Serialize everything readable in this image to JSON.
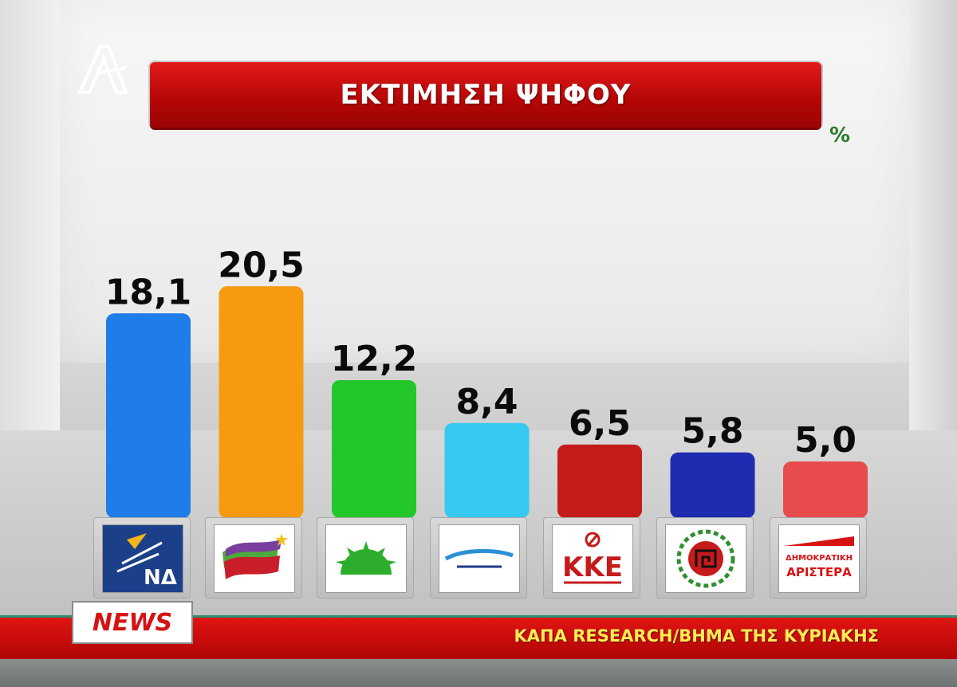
{
  "header": {
    "title": "ΕΚΤΙΜΗΣΗ ΨΗΦΟΥ",
    "unit": "%"
  },
  "footer": {
    "news_label": "NEWS",
    "source": "ΚΑΠΑ RESEARCH/ΒΗΜΑ ΤΗΣ ΚΥΡΙΑΚΗΣ"
  },
  "logos": {
    "nd": "ΝΔ",
    "kke": "ΚΚΕ",
    "dimar_top": "ΔΗΜΟΚΡΑΤΙΚΗ",
    "dimar_bottom": "ΑΡΙΣΤΕΡΑ"
  },
  "chart_data": {
    "type": "bar",
    "categories": [
      "ΝΔ",
      "ΣΥΡΙΖΑ",
      "ΠΑΣΟΚ",
      "ΑΝΕΞΑΡΤΗΤΟΙ ΕΛΛΗΝΕΣ",
      "ΚΚΕ",
      "ΧΡΥΣΗ ΑΥΓΗ",
      "ΔΗΜΟΚΡΑΤΙΚΗ ΑΡΙΣΤΕΡΑ"
    ],
    "values": [
      18.1,
      20.5,
      12.2,
      8.4,
      6.5,
      5.8,
      5.0
    ],
    "value_labels": [
      "18,1",
      "20,5",
      "12,2",
      "8,4",
      "6,5",
      "5,8",
      "5,0"
    ],
    "colors": [
      "#1e7de8",
      "#f79a10",
      "#22c82a",
      "#35c9ef",
      "#c51b1b",
      "#1d2cb0",
      "#e84b4b"
    ],
    "ylim": [
      0,
      22
    ]
  }
}
